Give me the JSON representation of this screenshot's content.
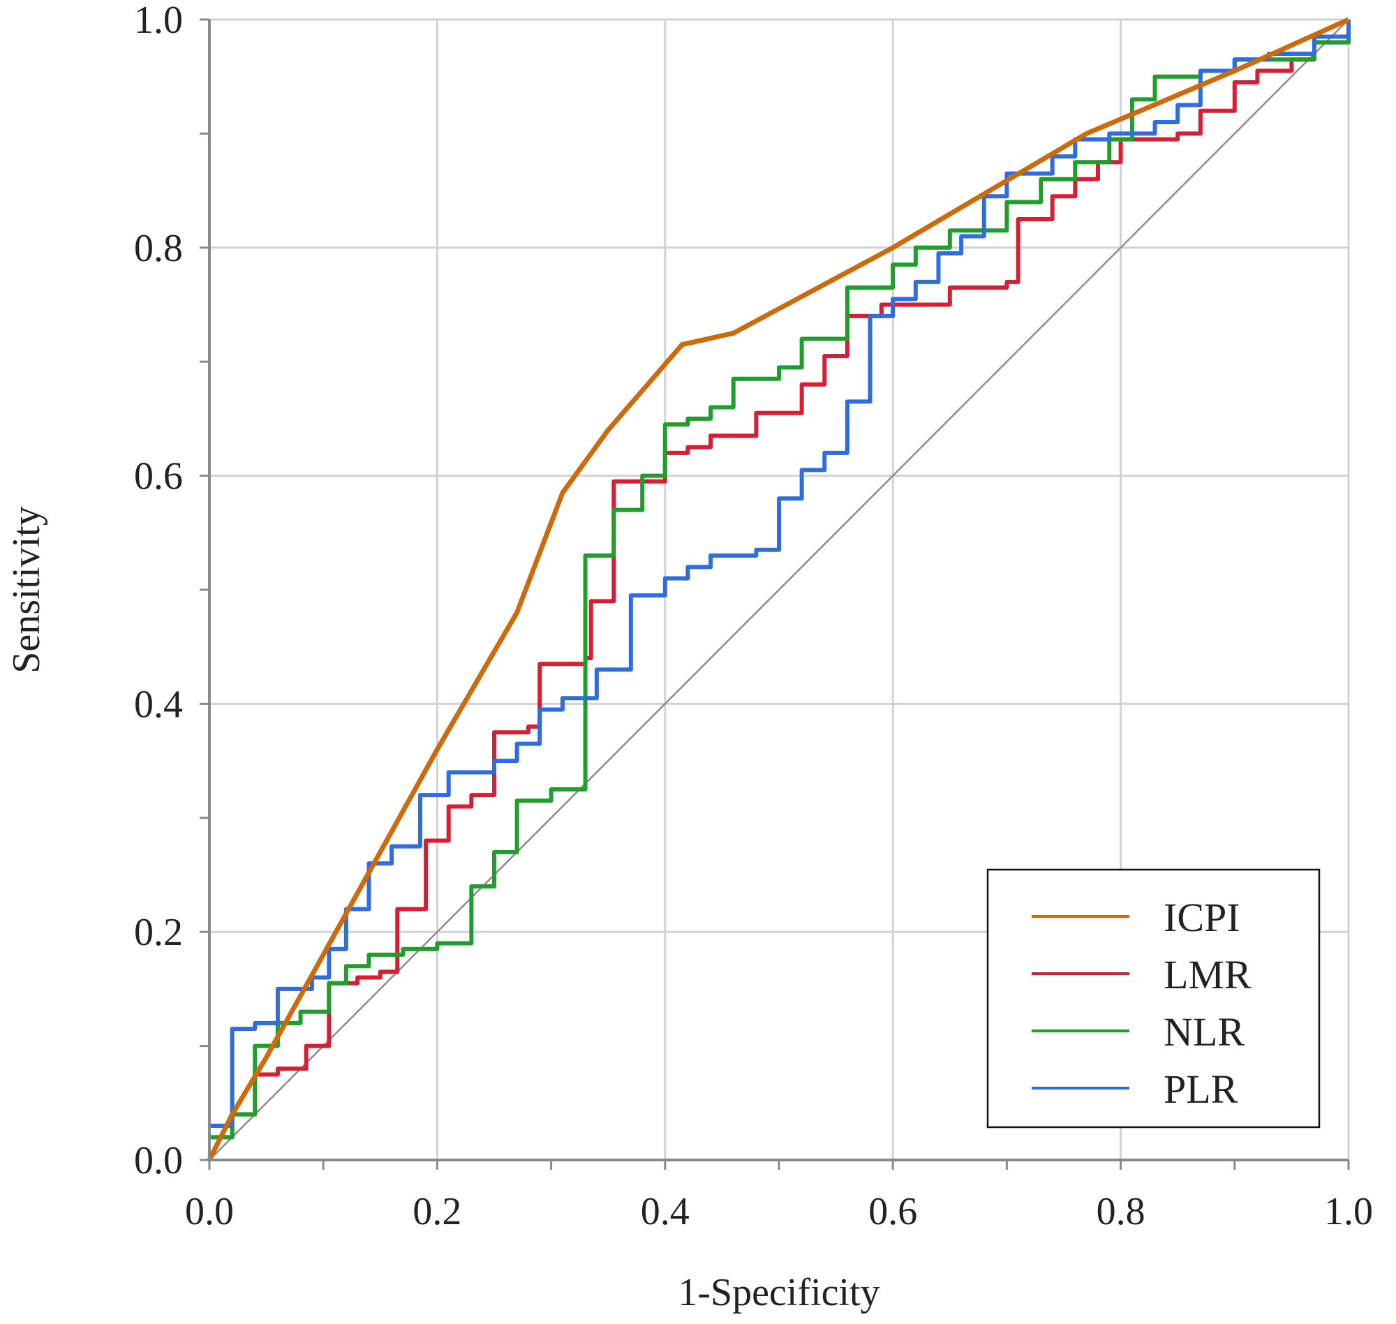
{
  "chart_data": {
    "type": "line",
    "title": "",
    "xlabel": "1-Specificity",
    "ylabel": "Sensitivity",
    "xlim": [
      0,
      1
    ],
    "ylim": [
      0,
      1
    ],
    "grid": true,
    "legend_position": "bottom-right",
    "x_ticks": [
      "0.0",
      "0.2",
      "0.4",
      "0.6",
      "0.8",
      "1.0"
    ],
    "y_ticks": [
      "0.0",
      "0.2",
      "0.4",
      "0.6",
      "0.8",
      "1.0"
    ],
    "reference_line": {
      "x": [
        0,
        1
      ],
      "y": [
        0,
        1
      ],
      "color": "#8c8c8c"
    },
    "series": [
      {
        "name": "ICPI",
        "color": "#cc6a0c",
        "step": false,
        "points": [
          [
            0,
            0
          ],
          [
            0.02,
            0.04
          ],
          [
            0.05,
            0.09
          ],
          [
            0.1,
            0.18
          ],
          [
            0.15,
            0.27
          ],
          [
            0.2,
            0.36
          ],
          [
            0.27,
            0.48
          ],
          [
            0.31,
            0.585
          ],
          [
            0.35,
            0.64
          ],
          [
            0.415,
            0.715
          ],
          [
            0.46,
            0.725
          ],
          [
            0.6,
            0.8
          ],
          [
            0.77,
            0.9
          ],
          [
            0.9,
            0.955
          ],
          [
            1,
            1
          ]
        ]
      },
      {
        "name": "LMR",
        "color": "#d81e34",
        "step": true,
        "points": [
          [
            0,
            0.02
          ],
          [
            0.02,
            0.04
          ],
          [
            0.04,
            0.075
          ],
          [
            0.06,
            0.08
          ],
          [
            0.085,
            0.1
          ],
          [
            0.105,
            0.155
          ],
          [
            0.13,
            0.16
          ],
          [
            0.15,
            0.165
          ],
          [
            0.165,
            0.22
          ],
          [
            0.19,
            0.28
          ],
          [
            0.21,
            0.31
          ],
          [
            0.23,
            0.32
          ],
          [
            0.25,
            0.375
          ],
          [
            0.28,
            0.38
          ],
          [
            0.29,
            0.435
          ],
          [
            0.33,
            0.44
          ],
          [
            0.335,
            0.49
          ],
          [
            0.355,
            0.595
          ],
          [
            0.4,
            0.62
          ],
          [
            0.42,
            0.625
          ],
          [
            0.44,
            0.635
          ],
          [
            0.48,
            0.655
          ],
          [
            0.52,
            0.68
          ],
          [
            0.54,
            0.705
          ],
          [
            0.56,
            0.74
          ],
          [
            0.59,
            0.75
          ],
          [
            0.65,
            0.765
          ],
          [
            0.7,
            0.77
          ],
          [
            0.71,
            0.825
          ],
          [
            0.74,
            0.845
          ],
          [
            0.76,
            0.86
          ],
          [
            0.78,
            0.875
          ],
          [
            0.8,
            0.895
          ],
          [
            0.85,
            0.9
          ],
          [
            0.87,
            0.92
          ],
          [
            0.9,
            0.945
          ],
          [
            0.92,
            0.955
          ],
          [
            0.95,
            0.965
          ],
          [
            0.97,
            0.98
          ],
          [
            1,
            1
          ]
        ]
      },
      {
        "name": "NLR",
        "color": "#1f9e2c",
        "step": true,
        "points": [
          [
            0,
            0.02
          ],
          [
            0.02,
            0.04
          ],
          [
            0.04,
            0.1
          ],
          [
            0.06,
            0.12
          ],
          [
            0.08,
            0.13
          ],
          [
            0.105,
            0.155
          ],
          [
            0.12,
            0.17
          ],
          [
            0.14,
            0.18
          ],
          [
            0.17,
            0.185
          ],
          [
            0.2,
            0.19
          ],
          [
            0.23,
            0.24
          ],
          [
            0.25,
            0.27
          ],
          [
            0.27,
            0.315
          ],
          [
            0.3,
            0.325
          ],
          [
            0.33,
            0.53
          ],
          [
            0.355,
            0.57
          ],
          [
            0.38,
            0.6
          ],
          [
            0.4,
            0.645
          ],
          [
            0.42,
            0.65
          ],
          [
            0.44,
            0.66
          ],
          [
            0.46,
            0.685
          ],
          [
            0.5,
            0.695
          ],
          [
            0.52,
            0.72
          ],
          [
            0.56,
            0.765
          ],
          [
            0.6,
            0.785
          ],
          [
            0.62,
            0.8
          ],
          [
            0.65,
            0.815
          ],
          [
            0.7,
            0.84
          ],
          [
            0.73,
            0.86
          ],
          [
            0.76,
            0.875
          ],
          [
            0.79,
            0.895
          ],
          [
            0.81,
            0.93
          ],
          [
            0.83,
            0.95
          ],
          [
            0.87,
            0.955
          ],
          [
            0.9,
            0.965
          ],
          [
            0.97,
            0.98
          ],
          [
            1,
            1
          ]
        ]
      },
      {
        "name": "PLR",
        "color": "#2e6ce0",
        "step": true,
        "points": [
          [
            0,
            0.03
          ],
          [
            0.02,
            0.115
          ],
          [
            0.04,
            0.12
          ],
          [
            0.06,
            0.15
          ],
          [
            0.09,
            0.16
          ],
          [
            0.105,
            0.185
          ],
          [
            0.12,
            0.22
          ],
          [
            0.14,
            0.26
          ],
          [
            0.16,
            0.275
          ],
          [
            0.185,
            0.32
          ],
          [
            0.21,
            0.34
          ],
          [
            0.25,
            0.35
          ],
          [
            0.27,
            0.365
          ],
          [
            0.29,
            0.395
          ],
          [
            0.31,
            0.405
          ],
          [
            0.34,
            0.43
          ],
          [
            0.37,
            0.495
          ],
          [
            0.4,
            0.51
          ],
          [
            0.42,
            0.52
          ],
          [
            0.44,
            0.53
          ],
          [
            0.48,
            0.535
          ],
          [
            0.5,
            0.58
          ],
          [
            0.52,
            0.605
          ],
          [
            0.54,
            0.62
          ],
          [
            0.56,
            0.665
          ],
          [
            0.58,
            0.74
          ],
          [
            0.6,
            0.755
          ],
          [
            0.62,
            0.77
          ],
          [
            0.64,
            0.795
          ],
          [
            0.66,
            0.81
          ],
          [
            0.68,
            0.845
          ],
          [
            0.7,
            0.865
          ],
          [
            0.74,
            0.88
          ],
          [
            0.76,
            0.895
          ],
          [
            0.79,
            0.9
          ],
          [
            0.83,
            0.91
          ],
          [
            0.85,
            0.925
          ],
          [
            0.87,
            0.955
          ],
          [
            0.9,
            0.965
          ],
          [
            0.93,
            0.97
          ],
          [
            0.97,
            0.985
          ],
          [
            1,
            1
          ]
        ]
      }
    ]
  }
}
